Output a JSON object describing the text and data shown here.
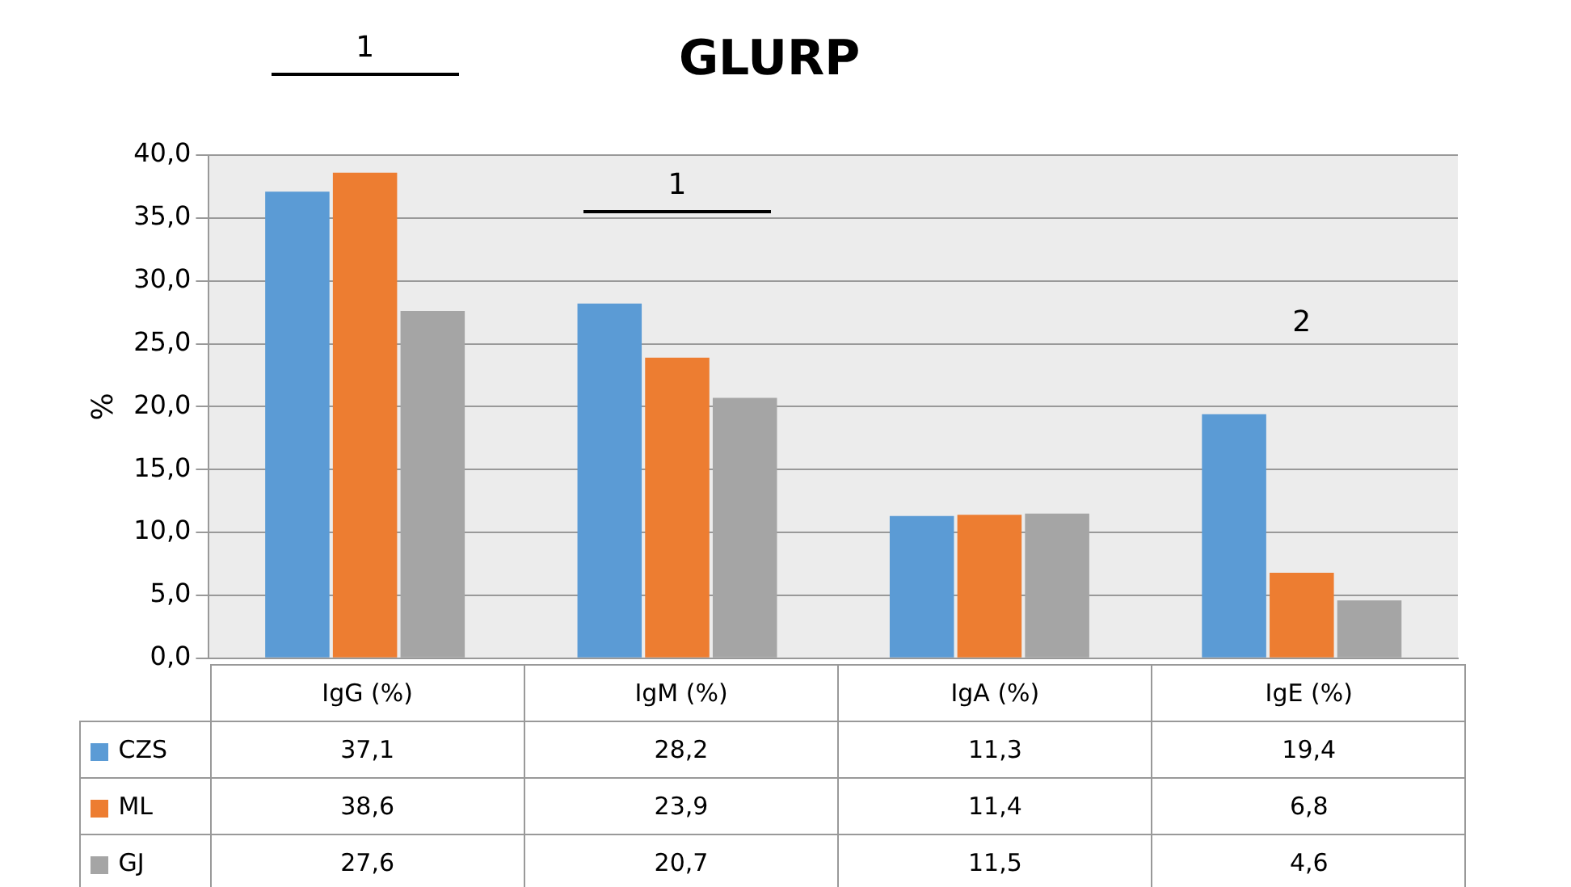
{
  "chart_data": {
    "type": "bar",
    "title": "GLURP",
    "ylabel": "%",
    "categories": [
      "IgG (%)",
      "IgM (%)",
      "IgA (%)",
      "IgE (%)"
    ],
    "series": [
      {
        "name": "CZS",
        "color": "#5b9bd5",
        "values": [
          37.1,
          28.2,
          11.3,
          19.4
        ],
        "value_labels": [
          "37,1",
          "28,2",
          "11,3",
          "19,4"
        ]
      },
      {
        "name": "ML",
        "color": "#ed7d31",
        "values": [
          38.6,
          23.9,
          11.4,
          6.8
        ],
        "value_labels": [
          "38,6",
          "23,9",
          "11,4",
          "6,8"
        ]
      },
      {
        "name": "GJ",
        "color": "#a5a5a5",
        "values": [
          27.6,
          20.7,
          11.5,
          4.6
        ],
        "value_labels": [
          "27,6",
          "20,7",
          "11,5",
          "4,6"
        ]
      }
    ],
    "ylim": [
      0,
      40
    ],
    "yticks": [
      {
        "value": 0,
        "label": "0,0"
      },
      {
        "value": 5,
        "label": "5,0"
      },
      {
        "value": 10,
        "label": "10,0"
      },
      {
        "value": 15,
        "label": "15,0"
      },
      {
        "value": 20,
        "label": "20,0"
      },
      {
        "value": 25,
        "label": "25,0"
      },
      {
        "value": 30,
        "label": "30,0"
      },
      {
        "value": 35,
        "label": "35,0"
      },
      {
        "value": 40,
        "label": "40,0"
      }
    ],
    "grid": "y",
    "legend": "bottom",
    "annotations": [
      "1",
      "1",
      "2"
    ]
  }
}
